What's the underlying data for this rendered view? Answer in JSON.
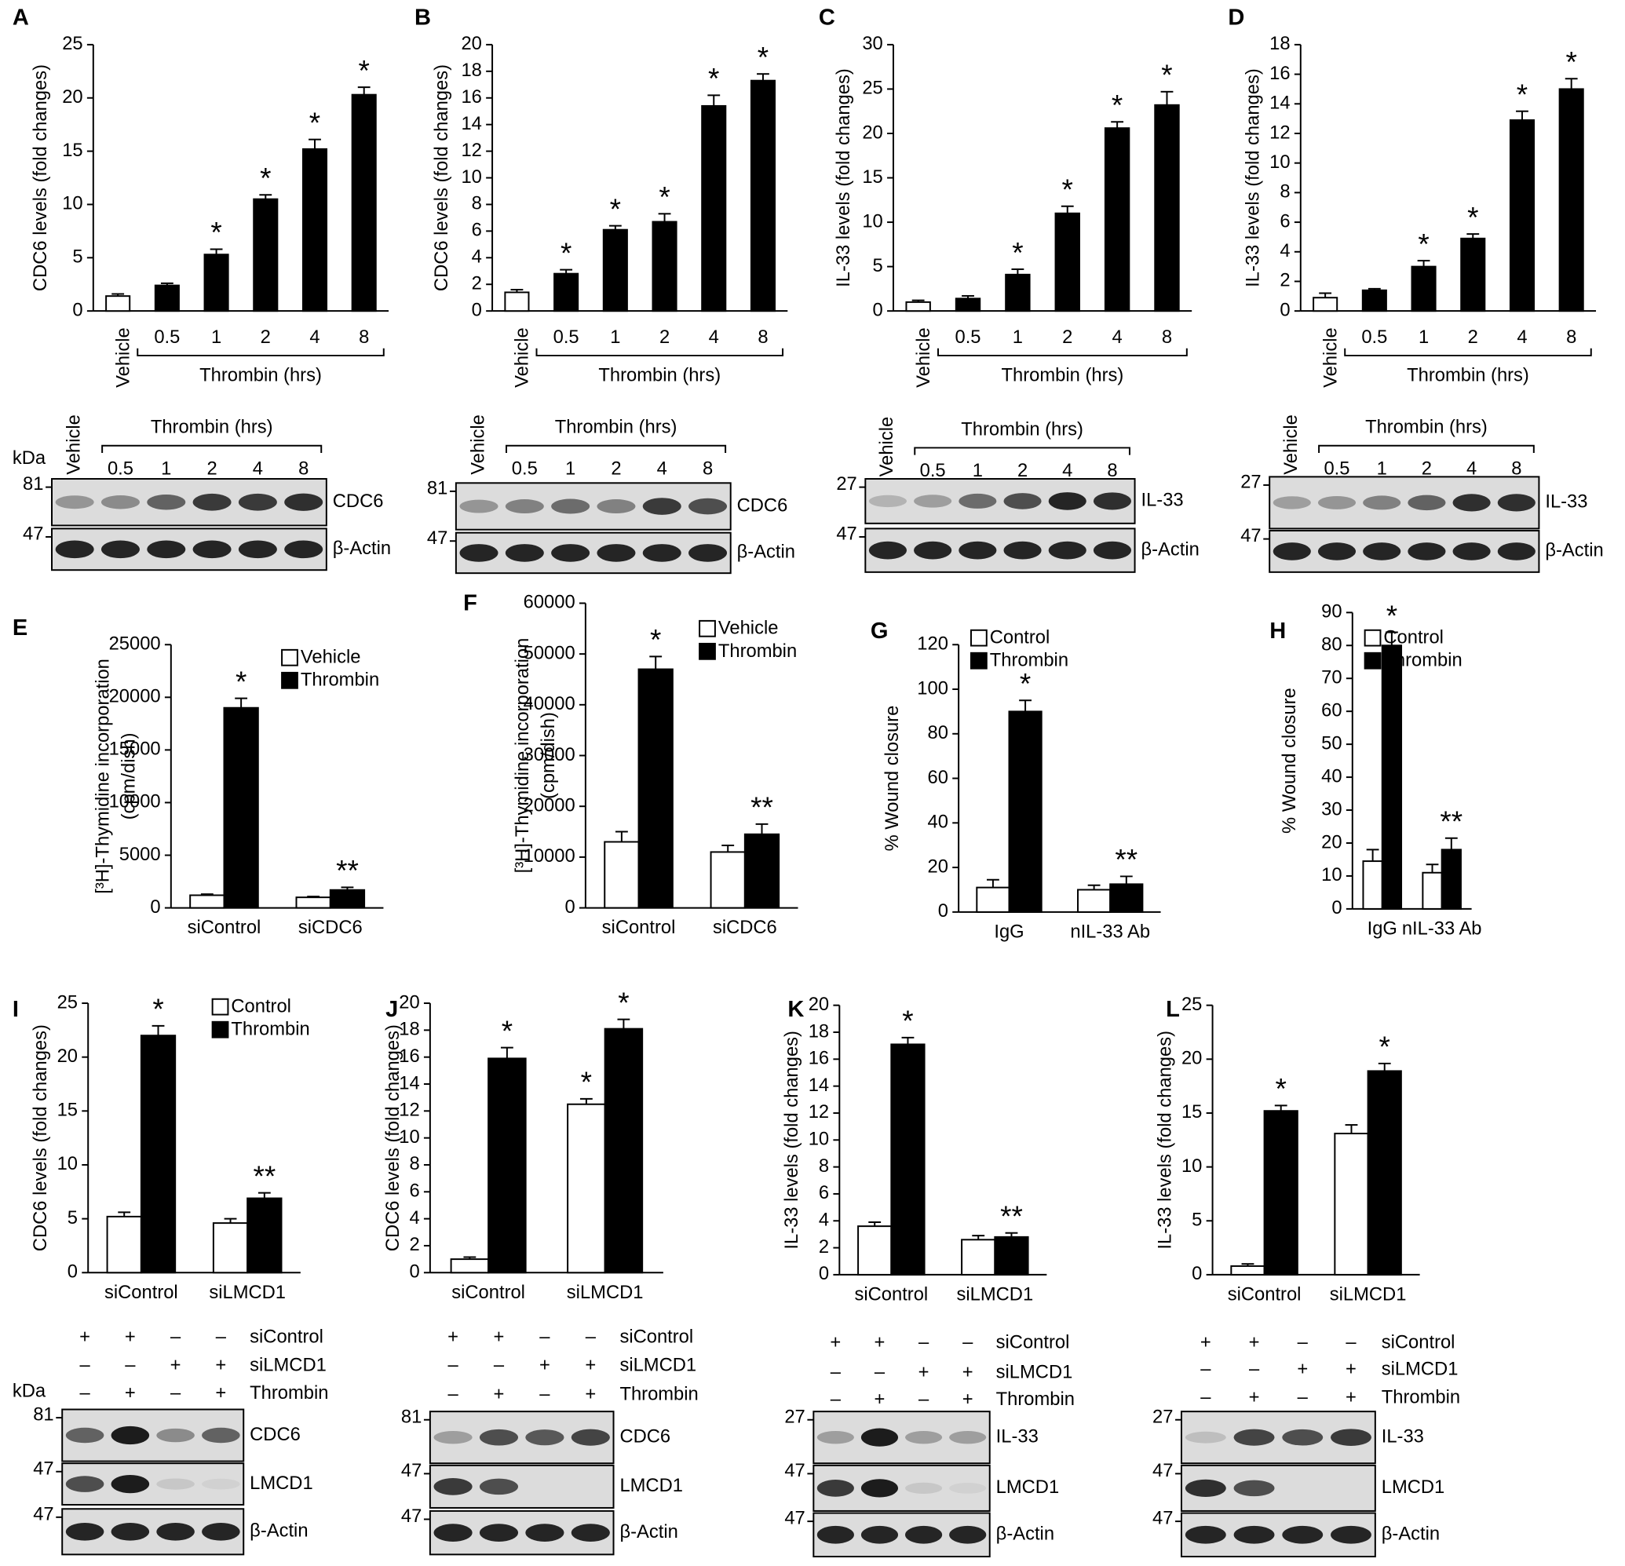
{
  "chart_data": [
    {
      "type": "bar",
      "panel": "A",
      "y_label": "CDC6 levels (fold changes)",
      "group_label": "Thrombin (hrs)",
      "categories": [
        "Vehicle",
        "0.5",
        "1",
        "2",
        "4",
        "8"
      ],
      "values": [
        1.4,
        2.4,
        5.3,
        10.5,
        15.2,
        20.3
      ],
      "errors": [
        0.2,
        0.2,
        0.5,
        0.4,
        0.9,
        0.7
      ],
      "colors": [
        "#ffffff",
        "#000000",
        "#000000",
        "#000000",
        "#000000",
        "#000000"
      ],
      "significance": [
        null,
        null,
        "*",
        "*",
        "*",
        "*"
      ],
      "ylim": [
        0,
        25
      ],
      "yticks": [
        0,
        5,
        10,
        15,
        20,
        25
      ]
    },
    {
      "type": "bar",
      "panel": "B",
      "y_label": "CDC6 levels (fold changes)",
      "group_label": "Thrombin (hrs)",
      "categories": [
        "Vehicle",
        "0.5",
        "1",
        "2",
        "4",
        "8"
      ],
      "values": [
        1.4,
        2.8,
        6.1,
        6.7,
        15.4,
        17.3
      ],
      "errors": [
        0.2,
        0.3,
        0.3,
        0.6,
        0.8,
        0.5
      ],
      "colors": [
        "#ffffff",
        "#000000",
        "#000000",
        "#000000",
        "#000000",
        "#000000"
      ],
      "significance": [
        null,
        "*",
        "*",
        "*",
        "*",
        "*"
      ],
      "ylim": [
        0,
        20
      ],
      "yticks": [
        0,
        2,
        4,
        6,
        8,
        10,
        12,
        14,
        16,
        18,
        20
      ]
    },
    {
      "type": "bar",
      "panel": "C",
      "y_label": "IL-33 levels (fold changes)",
      "group_label": "Thrombin (hrs)",
      "categories": [
        "Vehicle",
        "0.5",
        "1",
        "2",
        "4",
        "8"
      ],
      "values": [
        1.0,
        1.4,
        4.1,
        11.0,
        20.6,
        23.2
      ],
      "errors": [
        0.2,
        0.3,
        0.6,
        0.8,
        0.7,
        1.5
      ],
      "colors": [
        "#ffffff",
        "#000000",
        "#000000",
        "#000000",
        "#000000",
        "#000000"
      ],
      "significance": [
        null,
        null,
        "*",
        "*",
        "*",
        "*"
      ],
      "ylim": [
        0,
        30
      ],
      "yticks": [
        0,
        5,
        10,
        15,
        20,
        25,
        30
      ]
    },
    {
      "type": "bar",
      "panel": "D",
      "y_label": "IL-33 levels (fold changes)",
      "group_label": "Thrombin (hrs)",
      "categories": [
        "Vehicle",
        "0.5",
        "1",
        "2",
        "4",
        "8"
      ],
      "values": [
        0.9,
        1.4,
        3.0,
        4.9,
        12.9,
        15.0
      ],
      "errors": [
        0.3,
        0.1,
        0.4,
        0.3,
        0.6,
        0.7
      ],
      "colors": [
        "#ffffff",
        "#000000",
        "#000000",
        "#000000",
        "#000000",
        "#000000"
      ],
      "significance": [
        null,
        null,
        "*",
        "*",
        "*",
        "*"
      ],
      "ylim": [
        0,
        18
      ],
      "yticks": [
        0,
        2,
        4,
        6,
        8,
        10,
        12,
        14,
        16,
        18
      ]
    },
    {
      "type": "grouped-bar",
      "panel": "E",
      "y_label": "[³H]-Thymidine incorporation",
      "y_label2": "(cpm/dish)",
      "categories": [
        "siControl",
        "siCDC6"
      ],
      "series": [
        {
          "name": "Vehicle",
          "color": "#ffffff",
          "values": [
            1200,
            1000
          ],
          "errors": [
            100,
            80
          ],
          "significance": [
            null,
            null
          ]
        },
        {
          "name": "Thrombin",
          "color": "#000000",
          "values": [
            19000,
            1700
          ],
          "errors": [
            900,
            250
          ],
          "significance": [
            "*",
            "**"
          ]
        }
      ],
      "ylim": [
        0,
        25000
      ],
      "yticks": [
        0,
        5000,
        10000,
        15000,
        20000,
        25000
      ]
    },
    {
      "type": "grouped-bar",
      "panel": "F",
      "y_label": "[³H]-Thymidine incorporation",
      "y_label2": "(cpm/dish)",
      "categories": [
        "siControl",
        "siCDC6"
      ],
      "series": [
        {
          "name": "Vehicle",
          "color": "#ffffff",
          "values": [
            13000,
            11000
          ],
          "errors": [
            2000,
            1300
          ],
          "significance": [
            null,
            null
          ]
        },
        {
          "name": "Thrombin",
          "color": "#000000",
          "values": [
            47000,
            14500
          ],
          "errors": [
            2500,
            2000
          ],
          "significance": [
            "*",
            "**"
          ]
        }
      ],
      "ylim": [
        0,
        60000
      ],
      "yticks": [
        0,
        10000,
        20000,
        30000,
        40000,
        50000,
        60000
      ]
    },
    {
      "type": "grouped-bar",
      "panel": "G",
      "y_label": "% Wound closure",
      "categories": [
        "IgG",
        "nIL-33 Ab"
      ],
      "series": [
        {
          "name": "Control",
          "color": "#ffffff",
          "values": [
            11,
            10
          ],
          "errors": [
            3.5,
            2
          ],
          "significance": [
            null,
            null
          ]
        },
        {
          "name": "Thrombin",
          "color": "#000000",
          "values": [
            90,
            12.5
          ],
          "errors": [
            5,
            3.5
          ],
          "significance": [
            "*",
            "**"
          ]
        }
      ],
      "ylim": [
        0,
        120
      ],
      "yticks": [
        0,
        20,
        40,
        60,
        80,
        100,
        120
      ]
    },
    {
      "type": "grouped-bar",
      "panel": "H",
      "y_label": "% Wound closure",
      "categories": [
        "IgG",
        "nIL-33 Ab"
      ],
      "series": [
        {
          "name": "Control",
          "color": "#ffffff",
          "values": [
            14.5,
            11
          ],
          "errors": [
            3.5,
            2.5
          ],
          "significance": [
            null,
            null
          ]
        },
        {
          "name": "Thrombin",
          "color": "#000000",
          "values": [
            80,
            18
          ],
          "errors": [
            4,
            3.5
          ],
          "significance": [
            "*",
            "**"
          ]
        }
      ],
      "ylim": [
        0,
        90
      ],
      "yticks": [
        0,
        10,
        20,
        30,
        40,
        50,
        60,
        70,
        80,
        90
      ]
    },
    {
      "type": "grouped-bar",
      "panel": "I",
      "y_label": "CDC6 levels (fold changes)",
      "categories": [
        "siControl",
        "siLMCD1"
      ],
      "series": [
        {
          "name": "Control",
          "color": "#ffffff",
          "values": [
            5.2,
            4.6
          ],
          "errors": [
            0.4,
            0.4
          ],
          "significance": [
            null,
            null
          ]
        },
        {
          "name": "Thrombin",
          "color": "#000000",
          "values": [
            22,
            6.9
          ],
          "errors": [
            0.9,
            0.5
          ],
          "significance": [
            "*",
            "**"
          ]
        }
      ],
      "ylim": [
        0,
        25
      ],
      "yticks": [
        0,
        5,
        10,
        15,
        20,
        25
      ]
    },
    {
      "type": "grouped-bar",
      "panel": "J",
      "y_label": "CDC6 levels (fold changes)",
      "categories": [
        "siControl",
        "siLMCD1"
      ],
      "series": [
        {
          "color": "#ffffff",
          "values": [
            1.0,
            12.5
          ],
          "errors": [
            0.15,
            0.4
          ],
          "significance": [
            null,
            "*"
          ]
        },
        {
          "color": "#000000",
          "values": [
            15.9,
            18.1
          ],
          "errors": [
            0.8,
            0.7
          ],
          "significance": [
            "*",
            "*"
          ]
        }
      ],
      "ylim": [
        0,
        20
      ],
      "yticks": [
        0,
        2,
        4,
        6,
        8,
        10,
        12,
        14,
        16,
        18,
        20
      ]
    },
    {
      "type": "grouped-bar",
      "panel": "K",
      "y_label": "IL-33 levels (fold changes)",
      "categories": [
        "siControl",
        "siLMCD1"
      ],
      "series": [
        {
          "color": "#ffffff",
          "values": [
            3.6,
            2.6
          ],
          "errors": [
            0.3,
            0.3
          ],
          "significance": [
            null,
            null
          ]
        },
        {
          "color": "#000000",
          "values": [
            17.1,
            2.8
          ],
          "errors": [
            0.5,
            0.3
          ],
          "significance": [
            "*",
            "**"
          ]
        }
      ],
      "ylim": [
        0,
        20
      ],
      "yticks": [
        0,
        2,
        4,
        6,
        8,
        10,
        12,
        14,
        16,
        18,
        20
      ]
    },
    {
      "type": "grouped-bar",
      "panel": "L",
      "y_label": "IL-33 levels (fold changes)",
      "categories": [
        "siControl",
        "siLMCD1"
      ],
      "series": [
        {
          "color": "#ffffff",
          "values": [
            0.8,
            13.1
          ],
          "errors": [
            0.2,
            0.8
          ],
          "significance": [
            null,
            null
          ]
        },
        {
          "color": "#000000",
          "values": [
            15.2,
            18.9
          ],
          "errors": [
            0.5,
            0.7
          ],
          "significance": [
            "*",
            "*"
          ]
        }
      ],
      "ylim": [
        0,
        25
      ],
      "yticks": [
        0,
        5,
        10,
        15,
        20,
        25
      ]
    }
  ],
  "blots": [
    {
      "vehicle": "Vehicle",
      "group": "Thrombin (hrs)",
      "lanes": [
        "0.5",
        "1",
        "2",
        "4",
        "8"
      ],
      "kda": "kDa",
      "rows": [
        {
          "marker": "81",
          "label": "CDC6"
        },
        {
          "marker": "47",
          "label": "β-Actin"
        }
      ]
    },
    {
      "vehicle": "Vehicle",
      "group": "Thrombin (hrs)",
      "lanes": [
        "0.5",
        "1",
        "2",
        "4",
        "8"
      ],
      "rows": [
        {
          "marker": "81",
          "label": "CDC6"
        },
        {
          "marker": "47",
          "label": "β-Actin"
        }
      ]
    },
    {
      "vehicle": "Vehicle",
      "group": "Thrombin (hrs)",
      "lanes": [
        "0.5",
        "1",
        "2",
        "4",
        "8"
      ],
      "rows": [
        {
          "marker": "27",
          "label": "IL-33"
        },
        {
          "marker": "47",
          "label": "β-Actin"
        }
      ]
    },
    {
      "vehicle": "Vehicle",
      "group": "Thrombin (hrs)",
      "lanes": [
        "0.5",
        "1",
        "2",
        "4",
        "8"
      ],
      "rows": [
        {
          "marker": "27",
          "label": "IL-33"
        },
        {
          "marker": "47",
          "label": "β-Actin"
        }
      ]
    },
    {
      "kda": "kDa",
      "conditions": [
        {
          "label": "siControl",
          "signs": [
            "+",
            "+",
            "–",
            "–"
          ]
        },
        {
          "label": "siLMCD1",
          "signs": [
            "–",
            "–",
            "+",
            "+"
          ]
        },
        {
          "label": "Thrombin",
          "signs": [
            "–",
            "+",
            "–",
            "+"
          ]
        }
      ],
      "rows": [
        {
          "marker": "81",
          "label": "CDC6"
        },
        {
          "marker": "47",
          "label": "LMCD1"
        },
        {
          "marker": "47",
          "label": "β-Actin"
        }
      ]
    },
    {
      "conditions": [
        {
          "label": "siControl",
          "signs": [
            "+",
            "+",
            "–",
            "–"
          ]
        },
        {
          "label": "siLMCD1",
          "signs": [
            "–",
            "–",
            "+",
            "+"
          ]
        },
        {
          "label": "Thrombin",
          "signs": [
            "–",
            "+",
            "–",
            "+"
          ]
        }
      ],
      "rows": [
        {
          "marker": "81",
          "label": "CDC6"
        },
        {
          "marker": "47",
          "label": "LMCD1"
        },
        {
          "marker": "47",
          "label": "β-Actin"
        }
      ]
    },
    {
      "conditions": [
        {
          "label": "siControl",
          "signs": [
            "+",
            "+",
            "–",
            "–"
          ]
        },
        {
          "label": "siLMCD1",
          "signs": [
            "–",
            "–",
            "+",
            "+"
          ]
        },
        {
          "label": "Thrombin",
          "signs": [
            "–",
            "+",
            "–",
            "+"
          ]
        }
      ],
      "rows": [
        {
          "marker": "27",
          "label": "IL-33"
        },
        {
          "marker": "47",
          "label": "LMCD1"
        },
        {
          "marker": "47",
          "label": "β-Actin"
        }
      ]
    },
    {
      "conditions": [
        {
          "label": "siControl",
          "signs": [
            "+",
            "+",
            "–",
            "–"
          ]
        },
        {
          "label": "siLMCD1",
          "signs": [
            "–",
            "–",
            "+",
            "+"
          ]
        },
        {
          "label": "Thrombin",
          "signs": [
            "–",
            "+",
            "–",
            "+"
          ]
        }
      ],
      "rows": [
        {
          "marker": "27",
          "label": "IL-33"
        },
        {
          "marker": "47",
          "label": "LMCD1"
        },
        {
          "marker": "47",
          "label": "β-Actin"
        }
      ]
    }
  ]
}
